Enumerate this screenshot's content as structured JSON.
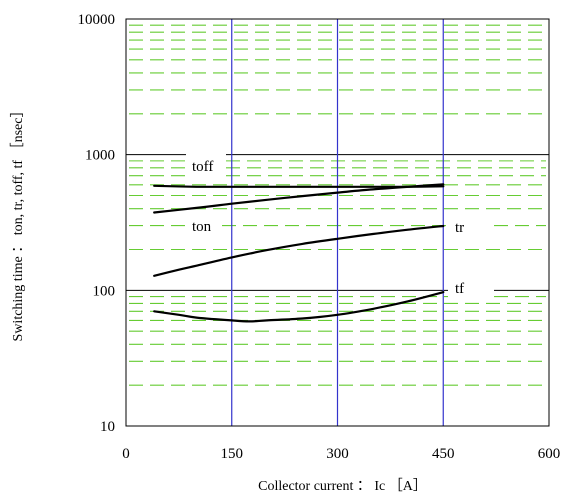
{
  "chart_data": {
    "type": "line",
    "title": "",
    "xlabel": "Collector current ： Ic ［A］",
    "ylabel": "Switching time ： ton, tr, toff, tf ［nsec］",
    "xlim": [
      0,
      600
    ],
    "ylim": [
      10,
      10000
    ],
    "y_scale": "log",
    "x_ticks": [
      0,
      150,
      300,
      450,
      600
    ],
    "y_ticks": [
      10,
      100,
      1000,
      10000
    ],
    "x_tick_labels": [
      "0",
      "150",
      "300",
      "450",
      "600"
    ],
    "y_tick_labels": [
      "10",
      "100",
      "1000",
      "10000"
    ],
    "grid": true,
    "minor_grid_color": "#66cc33",
    "major_vertical_grid_color": "#3333cc",
    "curve_color": "#000000",
    "series": [
      {
        "name": "toff",
        "x": [
          40,
          100,
          150,
          200,
          250,
          300,
          350,
          400,
          450
        ],
        "y": [
          590,
          580,
          580,
          580,
          580,
          580,
          580,
          580,
          585
        ]
      },
      {
        "name": "ton",
        "x": [
          40,
          100,
          150,
          200,
          250,
          300,
          350,
          400,
          450
        ],
        "y": [
          375,
          405,
          435,
          465,
          495,
          525,
          555,
          580,
          605
        ]
      },
      {
        "name": "tr",
        "x": [
          40,
          75,
          100,
          150,
          200,
          250,
          300,
          350,
          400,
          450
        ],
        "y": [
          128,
          142,
          152,
          175,
          198,
          220,
          240,
          260,
          280,
          298
        ]
      },
      {
        "name": "tf",
        "x": [
          40,
          75,
          100,
          150,
          175,
          200,
          250,
          300,
          350,
          400,
          450
        ],
        "y": [
          70,
          66,
          63,
          60,
          59,
          60,
          62,
          66,
          73,
          83,
          97
        ]
      }
    ]
  }
}
